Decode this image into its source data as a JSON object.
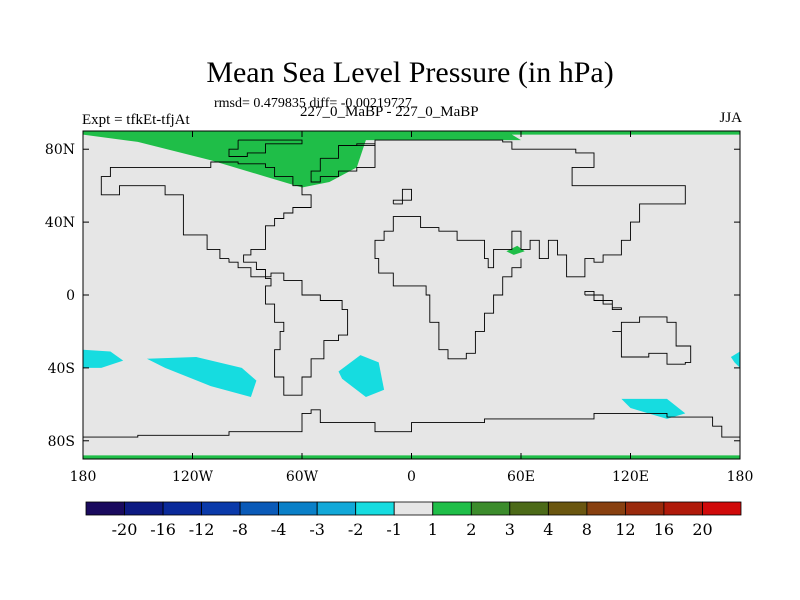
{
  "header": {
    "title": "Mean Sea Level Pressure (in hPa)",
    "stats": "rmsd= 0.479835 diff= -0.00219727",
    "expt": "Expt = tfkEt-tfjAt",
    "comparison": "227_0_MaBP - 227_0_MaBP",
    "season": "JJA"
  },
  "chart_data": {
    "type": "heatmap",
    "title": "Mean Sea Level Pressure (in hPa)",
    "xlabel": "",
    "ylabel": "",
    "xlim": [
      -180,
      180
    ],
    "ylim": [
      -90,
      90
    ],
    "x_ticks": [
      {
        "value": -180,
        "label": "180"
      },
      {
        "value": -120,
        "label": "120W"
      },
      {
        "value": -60,
        "label": "60W"
      },
      {
        "value": 0,
        "label": "0"
      },
      {
        "value": 60,
        "label": "60E"
      },
      {
        "value": 120,
        "label": "120E"
      },
      {
        "value": 180,
        "label": "180"
      }
    ],
    "y_ticks": [
      {
        "value": 80,
        "label": "80N"
      },
      {
        "value": 40,
        "label": "40N"
      },
      {
        "value": 0,
        "label": "0"
      },
      {
        "value": -40,
        "label": "40S"
      },
      {
        "value": -80,
        "label": "80S"
      }
    ],
    "background_color": "#e6e6e6",
    "colorbar": {
      "labels": [
        "-20",
        "-16",
        "-12",
        "-8",
        "-4",
        "-3",
        "-2",
        "-1",
        "1",
        "2",
        "3",
        "4",
        "8",
        "12",
        "16",
        "20"
      ],
      "colors": [
        "#1a0a5e",
        "#0d1a82",
        "#0a2a9a",
        "#0a3aaa",
        "#0a5ab8",
        "#0a80c8",
        "#12a8d8",
        "#16dce0",
        "#e6e6e6",
        "#1fbe48",
        "#3c8c2c",
        "#4c6a18",
        "#6a5610",
        "#884010",
        "#9a2a0c",
        "#b01a0a",
        "#d00a0a"
      ]
    },
    "regions": [
      {
        "name": "arctic-positive",
        "color": "#1fbe48",
        "lon": [
          -180,
          -150,
          -110,
          -80,
          -60,
          -45,
          -30,
          -25,
          60,
          55,
          180,
          180,
          -180
        ],
        "lat": [
          88,
          84,
          74,
          65,
          59,
          62,
          70,
          85,
          85,
          88,
          88,
          90,
          90
        ]
      },
      {
        "name": "antarctic-edge",
        "color": "#1fbe48",
        "lon": [
          -180,
          180,
          180,
          -180
        ],
        "lat": [
          -88,
          -88,
          -90,
          -90
        ]
      },
      {
        "name": "asia-positive",
        "color": "#1fbe48",
        "lon": [
          52,
          58,
          62,
          56
        ],
        "lat": [
          24,
          27,
          24,
          22
        ]
      },
      {
        "name": "s-pacific-west",
        "color": "#16dce0",
        "lon": [
          -180,
          -165,
          -158,
          -170,
          -180
        ],
        "lat": [
          -30,
          -31,
          -36,
          -40,
          -40
        ]
      },
      {
        "name": "s-pacific-mid",
        "color": "#16dce0",
        "lon": [
          -145,
          -118,
          -93,
          -85,
          -88,
          -110,
          -135
        ],
        "lat": [
          -35,
          -34,
          -40,
          -47,
          -56,
          -50,
          -40
        ]
      },
      {
        "name": "s-atlantic",
        "color": "#16dce0",
        "lon": [
          -40,
          -28,
          -18,
          -15,
          -25,
          -38
        ],
        "lat": [
          -42,
          -33,
          -37,
          -52,
          -56,
          -46
        ]
      },
      {
        "name": "s-indian",
        "color": "#16dce0",
        "lon": [
          115,
          140,
          150,
          140,
          120
        ],
        "lat": [
          -57,
          -57,
          -65,
          -68,
          -62
        ]
      },
      {
        "name": "s-pacific-east",
        "color": "#16dce0",
        "lon": [
          175,
          180,
          180,
          177
        ],
        "lat": [
          -34,
          -31,
          -40,
          -37
        ]
      }
    ],
    "coastlines": [
      [
        [
          -40,
          82
        ],
        [
          -20,
          82
        ],
        [
          -20,
          85
        ],
        [
          30,
          85
        ],
        [
          50,
          84
        ],
        [
          55,
          80
        ],
        [
          90,
          78
        ],
        [
          100,
          75
        ],
        [
          100,
          70
        ],
        [
          88,
          66
        ],
        [
          88,
          60
        ],
        [
          150,
          60
        ],
        [
          150,
          50
        ],
        [
          125,
          50
        ],
        [
          125,
          40
        ],
        [
          120,
          30
        ],
        [
          115,
          22
        ],
        [
          105,
          18
        ],
        [
          100,
          20
        ],
        [
          95,
          10
        ],
        [
          85,
          22
        ],
        [
          80,
          30
        ],
        [
          75,
          20
        ],
        [
          70,
          30
        ],
        [
          65,
          25
        ],
        [
          60,
          35
        ],
        [
          55,
          25
        ],
        [
          45,
          15
        ],
        [
          42,
          20
        ],
        [
          40,
          30
        ],
        [
          35,
          30
        ],
        [
          30,
          30
        ],
        [
          25,
          35
        ],
        [
          15,
          37
        ],
        [
          10,
          37
        ],
        [
          5,
          43
        ],
        [
          0,
          43
        ],
        [
          -10,
          40
        ],
        [
          -10,
          35
        ],
        [
          -15,
          30
        ],
        [
          -20,
          20
        ],
        [
          -18,
          12
        ],
        [
          -10,
          5
        ],
        [
          0,
          5
        ],
        [
          8,
          0
        ],
        [
          10,
          -15
        ],
        [
          15,
          -30
        ],
        [
          20,
          -35
        ],
        [
          30,
          -32
        ],
        [
          35,
          -20
        ],
        [
          40,
          -10
        ],
        [
          45,
          0
        ],
        [
          50,
          10
        ],
        [
          55,
          15
        ],
        [
          60,
          20
        ]
      ],
      [
        [
          -100,
          20
        ],
        [
          -105,
          25
        ],
        [
          -112,
          33
        ],
        [
          -125,
          42
        ],
        [
          -125,
          55
        ],
        [
          -135,
          60
        ],
        [
          -150,
          60
        ],
        [
          -160,
          55
        ],
        [
          -170,
          65
        ],
        [
          -165,
          70
        ],
        [
          -140,
          70
        ],
        [
          -120,
          70
        ],
        [
          -110,
          73
        ],
        [
          -95,
          72
        ],
        [
          -80,
          70
        ],
        [
          -75,
          65
        ],
        [
          -65,
          60
        ],
        [
          -60,
          55
        ],
        [
          -55,
          48
        ],
        [
          -65,
          45
        ],
        [
          -70,
          42
        ],
        [
          -75,
          38
        ],
        [
          -80,
          32
        ],
        [
          -80,
          25
        ],
        [
          -88,
          22
        ],
        [
          -92,
          18
        ],
        [
          -85,
          14
        ],
        [
          -80,
          9
        ],
        [
          -77,
          5
        ],
        [
          -80,
          0
        ],
        [
          -80,
          -5
        ],
        [
          -75,
          -15
        ],
        [
          -70,
          -20
        ],
        [
          -72,
          -30
        ],
        [
          -75,
          -45
        ],
        [
          -70,
          -55
        ],
        [
          -65,
          -55
        ],
        [
          -60,
          -45
        ],
        [
          -55,
          -35
        ],
        [
          -48,
          -25
        ],
        [
          -40,
          -22
        ],
        [
          -35,
          -8
        ],
        [
          -38,
          -3
        ],
        [
          -50,
          0
        ],
        [
          -60,
          8
        ],
        [
          -70,
          12
        ],
        [
          -77,
          10
        ],
        [
          -83,
          10
        ],
        [
          -88,
          15
        ],
        [
          -95,
          18
        ],
        [
          -100,
          20
        ]
      ],
      [
        [
          -50,
          75
        ],
        [
          -40,
          82
        ],
        [
          -30,
          83
        ],
        [
          -20,
          80
        ],
        [
          -20,
          70
        ],
        [
          -30,
          68
        ],
        [
          -40,
          65
        ],
        [
          -50,
          62
        ],
        [
          -55,
          68
        ],
        [
          -50,
          75
        ]
      ],
      [
        [
          -10,
          50
        ],
        [
          -5,
          55
        ],
        [
          -5,
          58
        ],
        [
          0,
          58
        ],
        [
          0,
          52
        ],
        [
          -10,
          50
        ]
      ],
      [
        [
          110,
          -20
        ],
        [
          115,
          -22
        ],
        [
          115,
          -34
        ],
        [
          130,
          -32
        ],
        [
          140,
          -38
        ],
        [
          150,
          -37
        ],
        [
          153,
          -28
        ],
        [
          145,
          -15
        ],
        [
          140,
          -12
        ],
        [
          132,
          -12
        ],
        [
          125,
          -15
        ],
        [
          115,
          -20
        ],
        [
          110,
          -20
        ]
      ],
      [
        [
          95,
          0
        ],
        [
          105,
          -5
        ],
        [
          110,
          -7
        ],
        [
          115,
          -8
        ],
        [
          110,
          -3
        ],
        [
          100,
          2
        ],
        [
          95,
          0
        ]
      ],
      [
        [
          -180,
          -78
        ],
        [
          -150,
          -77
        ],
        [
          -100,
          -75
        ],
        [
          -60,
          -65
        ],
        [
          -55,
          -63
        ],
        [
          -50,
          -70
        ],
        [
          -20,
          -75
        ],
        [
          0,
          -70
        ],
        [
          40,
          -68
        ],
        [
          70,
          -68
        ],
        [
          100,
          -65
        ],
        [
          140,
          -67
        ],
        [
          165,
          -72
        ],
        [
          170,
          -78
        ],
        [
          180,
          -78
        ]
      ],
      [
        [
          -95,
          85
        ],
        [
          -60,
          83
        ],
        [
          -80,
          78
        ],
        [
          -90,
          76
        ],
        [
          -100,
          80
        ],
        [
          -95,
          85
        ]
      ]
    ]
  }
}
